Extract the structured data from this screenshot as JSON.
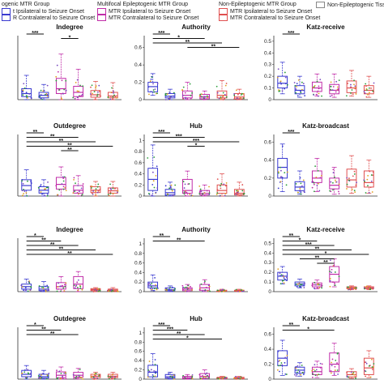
{
  "legend": {
    "groups": [
      {
        "header": "ogenic MTR Group",
        "items": [
          {
            "label": "t Ipsilateral to Seizure Onset",
            "color": "#3a3ad0"
          },
          {
            "label": "R Contralateral to Seizure Onset",
            "color": "#3a3ad0"
          }
        ]
      },
      {
        "header": "Multifocal Epileptogenic MTR Group",
        "items": [
          {
            "label": "MTR Ipsilateral to Seizure Onset",
            "color": "#c02ca8"
          },
          {
            "label": "MTR Contralateral to Seizure Onset",
            "color": "#c02ca8"
          }
        ]
      },
      {
        "header": "Non-Epileptogenic MTR Group",
        "items": [
          {
            "label": "MTR Ipsilateral to Seizure Onset",
            "color": "#e05050"
          },
          {
            "label": "MTR Contralateral to Seizure Onset",
            "color": "#e05050"
          }
        ]
      },
      {
        "header": "",
        "items": [
          {
            "label": "Non-Epileptogenic Tissue",
            "color": "#888888"
          }
        ]
      }
    ]
  },
  "chart_data": [
    {
      "type": "box",
      "title": "Indegree",
      "yticks": [],
      "ylim": [
        0,
        1
      ],
      "series": [
        {
          "q1": 0.05,
          "med": 0.1,
          "q3": 0.18,
          "lo": 0.0,
          "hi": 0.4,
          "color": "#3a3ad0"
        },
        {
          "q1": 0.03,
          "med": 0.07,
          "q3": 0.12,
          "lo": 0.0,
          "hi": 0.25,
          "color": "#3a3ad0"
        },
        {
          "q1": 0.1,
          "med": 0.18,
          "q3": 0.35,
          "lo": 0.0,
          "hi": 0.75,
          "color": "#c02ca8"
        },
        {
          "q1": 0.05,
          "med": 0.12,
          "q3": 0.22,
          "lo": 0.0,
          "hi": 0.5,
          "color": "#c02ca8"
        },
        {
          "q1": 0.04,
          "med": 0.08,
          "q3": 0.15,
          "lo": 0.0,
          "hi": 0.3,
          "color": "#e05050"
        },
        {
          "q1": 0.03,
          "med": 0.06,
          "q3": 0.12,
          "lo": 0.0,
          "hi": 0.28,
          "color": "#e05050"
        }
      ],
      "sig": [
        {
          "a": 0,
          "b": 1,
          "label": "***"
        },
        {
          "a": 2,
          "b": 3,
          "label": "*"
        }
      ]
    },
    {
      "type": "box",
      "title": "Authority",
      "yticks": [
        "0",
        "0.2",
        "0.4",
        "0.6"
      ],
      "ylim": [
        0,
        0.7
      ],
      "series": [
        {
          "q1": 0.09,
          "med": 0.15,
          "q3": 0.2,
          "lo": 0.05,
          "hi": 0.3,
          "color": "#3a3ad0"
        },
        {
          "q1": 0.02,
          "med": 0.04,
          "q3": 0.07,
          "lo": 0.0,
          "hi": 0.12,
          "color": "#3a3ad0"
        },
        {
          "q1": 0.02,
          "med": 0.05,
          "q3": 0.1,
          "lo": 0.0,
          "hi": 0.2,
          "color": "#c02ca8"
        },
        {
          "q1": 0.01,
          "med": 0.03,
          "q3": 0.06,
          "lo": 0.0,
          "hi": 0.1,
          "color": "#c02ca8"
        },
        {
          "q1": 0.02,
          "med": 0.05,
          "q3": 0.1,
          "lo": 0.0,
          "hi": 0.22,
          "color": "#e05050"
        },
        {
          "q1": 0.01,
          "med": 0.03,
          "q3": 0.07,
          "lo": 0.0,
          "hi": 0.12,
          "color": "#e05050"
        }
      ],
      "sig": [
        {
          "a": 0,
          "b": 1,
          "label": "***"
        },
        {
          "a": 0,
          "b": 3,
          "label": "*"
        },
        {
          "a": 0,
          "b": 4,
          "label": "**"
        },
        {
          "a": 2,
          "b": 5,
          "label": "**"
        }
      ]
    },
    {
      "type": "box",
      "title": "Katz-receive",
      "yticks": [
        "0",
        "0.1",
        "0.2",
        "0.3",
        "0.4",
        "0.5"
      ],
      "ylim": [
        0,
        0.52
      ],
      "series": [
        {
          "q1": 0.1,
          "med": 0.14,
          "q3": 0.2,
          "lo": 0.05,
          "hi": 0.32,
          "color": "#3a3ad0"
        },
        {
          "q1": 0.05,
          "med": 0.08,
          "q3": 0.12,
          "lo": 0.02,
          "hi": 0.2,
          "color": "#3a3ad0"
        },
        {
          "q1": 0.07,
          "med": 0.1,
          "q3": 0.15,
          "lo": 0.03,
          "hi": 0.22,
          "color": "#c02ca8"
        },
        {
          "q1": 0.05,
          "med": 0.08,
          "q3": 0.13,
          "lo": 0.02,
          "hi": 0.22,
          "color": "#c02ca8"
        },
        {
          "q1": 0.06,
          "med": 0.1,
          "q3": 0.16,
          "lo": 0.03,
          "hi": 0.25,
          "color": "#e05050"
        },
        {
          "q1": 0.05,
          "med": 0.08,
          "q3": 0.12,
          "lo": 0.02,
          "hi": 0.2,
          "color": "#e05050"
        }
      ],
      "sig": [
        {
          "a": 0,
          "b": 1,
          "label": "***"
        }
      ]
    },
    {
      "type": "box",
      "title": "Outdegree",
      "yticks": [],
      "ylim": [
        0,
        1
      ],
      "series": [
        {
          "q1": 0.1,
          "med": 0.18,
          "q3": 0.28,
          "lo": 0.0,
          "hi": 0.45,
          "color": "#3a3ad0"
        },
        {
          "q1": 0.05,
          "med": 0.1,
          "q3": 0.16,
          "lo": 0.0,
          "hi": 0.28,
          "color": "#3a3ad0"
        },
        {
          "q1": 0.12,
          "med": 0.2,
          "q3": 0.32,
          "lo": 0.0,
          "hi": 0.5,
          "color": "#c02ca8"
        },
        {
          "q1": 0.05,
          "med": 0.1,
          "q3": 0.18,
          "lo": 0.0,
          "hi": 0.35,
          "color": "#c02ca8"
        },
        {
          "q1": 0.06,
          "med": 0.1,
          "q3": 0.16,
          "lo": 0.0,
          "hi": 0.25,
          "color": "#e05050"
        },
        {
          "q1": 0.05,
          "med": 0.09,
          "q3": 0.14,
          "lo": 0.0,
          "hi": 0.25,
          "color": "#e05050"
        }
      ],
      "sig": [
        {
          "a": 0,
          "b": 1,
          "label": "**"
        },
        {
          "a": 0,
          "b": 3,
          "label": "**"
        },
        {
          "a": 0,
          "b": 4,
          "label": "**"
        },
        {
          "a": 0,
          "b": 5,
          "label": "**"
        },
        {
          "a": 2,
          "b": 3,
          "label": "**"
        }
      ]
    },
    {
      "type": "box",
      "title": "Hub",
      "yticks": [
        "0",
        "0.2",
        "0.4",
        "0.6",
        "0.8",
        "1"
      ],
      "ylim": [
        0,
        1.05
      ],
      "series": [
        {
          "q1": 0.1,
          "med": 0.3,
          "q3": 0.5,
          "lo": 0.0,
          "hi": 0.92,
          "color": "#3a3ad0"
        },
        {
          "q1": 0.02,
          "med": 0.06,
          "q3": 0.12,
          "lo": 0.0,
          "hi": 0.25,
          "color": "#3a3ad0"
        },
        {
          "q1": 0.05,
          "med": 0.1,
          "q3": 0.3,
          "lo": 0.0,
          "hi": 0.45,
          "color": "#c02ca8"
        },
        {
          "q1": 0.02,
          "med": 0.05,
          "q3": 0.1,
          "lo": 0.0,
          "hi": 0.2,
          "color": "#c02ca8"
        },
        {
          "q1": 0.05,
          "med": 0.1,
          "q3": 0.2,
          "lo": 0.0,
          "hi": 0.4,
          "color": "#e05050"
        },
        {
          "q1": 0.02,
          "med": 0.05,
          "q3": 0.12,
          "lo": 0.0,
          "hi": 0.25,
          "color": "#e05050"
        }
      ],
      "sig": [
        {
          "a": 0,
          "b": 1,
          "label": "***"
        },
        {
          "a": 0,
          "b": 3,
          "label": "***"
        },
        {
          "a": 0,
          "b": 5,
          "label": "***"
        },
        {
          "a": 2,
          "b": 3,
          "label": "*"
        }
      ]
    },
    {
      "type": "box",
      "title": "Katz-broadcast",
      "yticks": [
        "0",
        "0.2",
        "0.4",
        "0.6"
      ],
      "ylim": [
        0,
        0.65
      ],
      "series": [
        {
          "q1": 0.2,
          "med": 0.32,
          "q3": 0.42,
          "lo": 0.05,
          "hi": 0.58,
          "color": "#3a3ad0"
        },
        {
          "q1": 0.06,
          "med": 0.1,
          "q3": 0.16,
          "lo": 0.02,
          "hi": 0.28,
          "color": "#3a3ad0"
        },
        {
          "q1": 0.15,
          "med": 0.2,
          "q3": 0.28,
          "lo": 0.05,
          "hi": 0.42,
          "color": "#c02ca8"
        },
        {
          "q1": 0.08,
          "med": 0.12,
          "q3": 0.2,
          "lo": 0.02,
          "hi": 0.32,
          "color": "#c02ca8"
        },
        {
          "q1": 0.1,
          "med": 0.18,
          "q3": 0.3,
          "lo": 0.03,
          "hi": 0.45,
          "color": "#e05050"
        },
        {
          "q1": 0.1,
          "med": 0.15,
          "q3": 0.28,
          "lo": 0.03,
          "hi": 0.4,
          "color": "#e05050"
        }
      ],
      "sig": [
        {
          "a": 0,
          "b": 1,
          "label": "***"
        }
      ]
    },
    {
      "type": "box",
      "title": "Indegree",
      "yticks": [],
      "ylim": [
        0,
        1
      ],
      "series": [
        {
          "q1": 0.05,
          "med": 0.1,
          "q3": 0.15,
          "lo": 0.0,
          "hi": 0.25,
          "color": "#3a3ad0"
        },
        {
          "q1": 0.02,
          "med": 0.05,
          "q3": 0.1,
          "lo": 0.0,
          "hi": 0.2,
          "color": "#3a3ad0"
        },
        {
          "q1": 0.05,
          "med": 0.1,
          "q3": 0.18,
          "lo": 0.0,
          "hi": 0.3,
          "color": "#c02ca8"
        },
        {
          "q1": 0.06,
          "med": 0.15,
          "q3": 0.3,
          "lo": 0.0,
          "hi": 0.4,
          "color": "#c02ca8"
        },
        {
          "q1": 0.02,
          "med": 0.04,
          "q3": 0.06,
          "lo": 0.0,
          "hi": 0.08,
          "color": "#e05050"
        },
        {
          "q1": 0.01,
          "med": 0.03,
          "q3": 0.05,
          "lo": 0.0,
          "hi": 0.08,
          "color": "#e05050"
        }
      ],
      "sig": [
        {
          "a": 0,
          "b": 1,
          "label": "*"
        },
        {
          "a": 0,
          "b": 2,
          "label": "**"
        },
        {
          "a": 0,
          "b": 3,
          "label": "**"
        },
        {
          "a": 0,
          "b": 4,
          "label": "**"
        },
        {
          "a": 0,
          "b": 5,
          "label": "**"
        }
      ]
    },
    {
      "type": "box",
      "title": "Authority",
      "yticks": [
        "0",
        "0.2",
        "0.4",
        "0.6",
        "0.8",
        "1"
      ],
      "ylim": [
        0,
        1.05
      ],
      "series": [
        {
          "q1": 0.08,
          "med": 0.12,
          "q3": 0.2,
          "lo": 0.02,
          "hi": 0.35,
          "color": "#3a3ad0"
        },
        {
          "q1": 0.02,
          "med": 0.04,
          "q3": 0.08,
          "lo": 0.0,
          "hi": 0.12,
          "color": "#3a3ad0"
        },
        {
          "q1": 0.02,
          "med": 0.05,
          "q3": 0.08,
          "lo": 0.0,
          "hi": 0.15,
          "color": "#c02ca8"
        },
        {
          "q1": 0.03,
          "med": 0.08,
          "q3": 0.15,
          "lo": 0.0,
          "hi": 0.25,
          "color": "#c02ca8"
        },
        {
          "q1": 0.01,
          "med": 0.02,
          "q3": 0.03,
          "lo": 0.0,
          "hi": 0.05,
          "color": "#e05050"
        },
        {
          "q1": 0.01,
          "med": 0.02,
          "q3": 0.03,
          "lo": 0.0,
          "hi": 0.05,
          "color": "#e05050"
        }
      ],
      "sig": [
        {
          "a": 0,
          "b": 1,
          "label": "**"
        },
        {
          "a": 0,
          "b": 3,
          "label": "**"
        }
      ]
    },
    {
      "type": "box",
      "title": "Katz-receive",
      "yticks": [
        "0",
        "0.1",
        "0.2",
        "0.3",
        "0.4",
        "0.5"
      ],
      "ylim": [
        0,
        0.52
      ],
      "series": [
        {
          "q1": 0.12,
          "med": 0.16,
          "q3": 0.2,
          "lo": 0.08,
          "hi": 0.26,
          "color": "#3a3ad0"
        },
        {
          "q1": 0.06,
          "med": 0.08,
          "q3": 0.1,
          "lo": 0.04,
          "hi": 0.13,
          "color": "#3a3ad0"
        },
        {
          "q1": 0.05,
          "med": 0.07,
          "q3": 0.09,
          "lo": 0.03,
          "hi": 0.12,
          "color": "#c02ca8"
        },
        {
          "q1": 0.1,
          "med": 0.18,
          "q3": 0.26,
          "lo": 0.05,
          "hi": 0.34,
          "color": "#c02ca8"
        },
        {
          "q1": 0.03,
          "med": 0.04,
          "q3": 0.05,
          "lo": 0.02,
          "hi": 0.06,
          "color": "#e05050"
        },
        {
          "q1": 0.03,
          "med": 0.04,
          "q3": 0.05,
          "lo": 0.02,
          "hi": 0.06,
          "color": "#e05050"
        }
      ],
      "sig": [
        {
          "a": 0,
          "b": 1,
          "label": "**"
        },
        {
          "a": 0,
          "b": 2,
          "label": "*"
        },
        {
          "a": 0,
          "b": 3,
          "label": "***"
        },
        {
          "a": 0,
          "b": 4,
          "label": "**"
        },
        {
          "a": 0,
          "b": 5,
          "label": "*"
        },
        {
          "a": 1,
          "b": 3,
          "label": "**"
        },
        {
          "a": 2,
          "b": 3,
          "label": "**"
        }
      ]
    },
    {
      "type": "box",
      "title": "Outdegree",
      "yticks": [],
      "ylim": [
        0,
        1
      ],
      "series": [
        {
          "q1": 0.05,
          "med": 0.1,
          "q3": 0.18,
          "lo": 0.0,
          "hi": 0.28,
          "color": "#3a3ad0"
        },
        {
          "q1": 0.02,
          "med": 0.05,
          "q3": 0.1,
          "lo": 0.0,
          "hi": 0.18,
          "color": "#3a3ad0"
        },
        {
          "q1": 0.03,
          "med": 0.08,
          "q3": 0.15,
          "lo": 0.0,
          "hi": 0.25,
          "color": "#c02ca8"
        },
        {
          "q1": 0.04,
          "med": 0.08,
          "q3": 0.14,
          "lo": 0.0,
          "hi": 0.22,
          "color": "#c02ca8"
        },
        {
          "q1": 0.03,
          "med": 0.06,
          "q3": 0.1,
          "lo": 0.0,
          "hi": 0.14,
          "color": "#e05050"
        },
        {
          "q1": 0.03,
          "med": 0.06,
          "q3": 0.1,
          "lo": 0.0,
          "hi": 0.14,
          "color": "#e05050"
        }
      ],
      "sig": [
        {
          "a": 0,
          "b": 1,
          "label": "*"
        },
        {
          "a": 0,
          "b": 2,
          "label": "**"
        },
        {
          "a": 0,
          "b": 3,
          "label": "**"
        }
      ]
    },
    {
      "type": "box",
      "title": "Hub",
      "yticks": [
        "0",
        "0.2",
        "0.4",
        "0.6",
        "0.8",
        "1"
      ],
      "ylim": [
        0,
        1.05
      ],
      "series": [
        {
          "q1": 0.05,
          "med": 0.15,
          "q3": 0.3,
          "lo": 0.0,
          "hi": 0.55,
          "color": "#3a3ad0"
        },
        {
          "q1": 0.02,
          "med": 0.05,
          "q3": 0.1,
          "lo": 0.0,
          "hi": 0.15,
          "color": "#3a3ad0"
        },
        {
          "q1": 0.01,
          "med": 0.03,
          "q3": 0.06,
          "lo": 0.0,
          "hi": 0.1,
          "color": "#c02ca8"
        },
        {
          "q1": 0.02,
          "med": 0.06,
          "q3": 0.12,
          "lo": 0.0,
          "hi": 0.2,
          "color": "#c02ca8"
        },
        {
          "q1": 0.01,
          "med": 0.02,
          "q3": 0.04,
          "lo": 0.0,
          "hi": 0.06,
          "color": "#e05050"
        },
        {
          "q1": 0.01,
          "med": 0.02,
          "q3": 0.04,
          "lo": 0.0,
          "hi": 0.06,
          "color": "#e05050"
        }
      ],
      "sig": [
        {
          "a": 0,
          "b": 1,
          "label": "***"
        },
        {
          "a": 0,
          "b": 2,
          "label": "***"
        },
        {
          "a": 0,
          "b": 3,
          "label": "**"
        },
        {
          "a": 0,
          "b": 4,
          "label": "*"
        }
      ]
    },
    {
      "type": "box",
      "title": "Katz-broadcast",
      "yticks": [
        "0",
        "0.2",
        "0.4",
        "0.6"
      ],
      "ylim": [
        0,
        0.65
      ],
      "series": [
        {
          "q1": 0.18,
          "med": 0.28,
          "q3": 0.38,
          "lo": 0.05,
          "hi": 0.52,
          "color": "#3a3ad0"
        },
        {
          "q1": 0.08,
          "med": 0.12,
          "q3": 0.16,
          "lo": 0.04,
          "hi": 0.22,
          "color": "#3a3ad0"
        },
        {
          "q1": 0.06,
          "med": 0.1,
          "q3": 0.16,
          "lo": 0.02,
          "hi": 0.24,
          "color": "#c02ca8"
        },
        {
          "q1": 0.1,
          "med": 0.2,
          "q3": 0.35,
          "lo": 0.05,
          "hi": 0.48,
          "color": "#c02ca8"
        },
        {
          "q1": 0.03,
          "med": 0.06,
          "q3": 0.1,
          "lo": 0.01,
          "hi": 0.14,
          "color": "#e05050"
        },
        {
          "q1": 0.06,
          "med": 0.15,
          "q3": 0.28,
          "lo": 0.02,
          "hi": 0.38,
          "color": "#e05050"
        }
      ],
      "sig": [
        {
          "a": 0,
          "b": 1,
          "label": "**"
        },
        {
          "a": 0,
          "b": 3,
          "label": "*"
        }
      ]
    }
  ]
}
